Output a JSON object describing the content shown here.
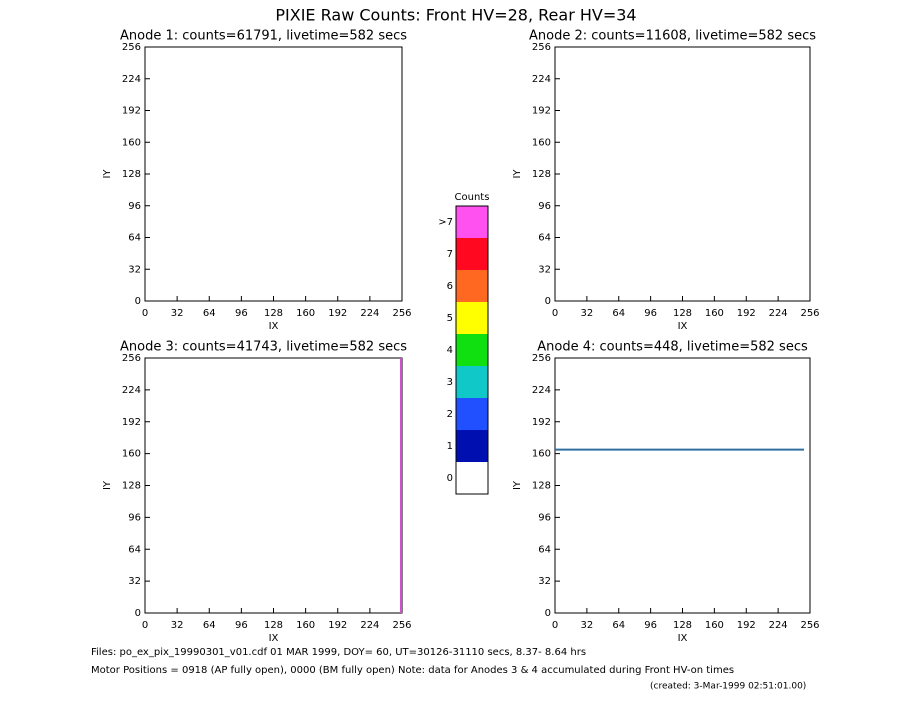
{
  "title": "PIXIE Raw Counts:  Front HV=28, Rear HV=34",
  "chart_data": [
    {
      "type": "image",
      "title": "Anode 1: counts=61791, livetime=582 secs",
      "xlabel": "IX",
      "ylabel": "IY",
      "xlim": [
        0,
        256
      ],
      "ylim": [
        0,
        256
      ],
      "xticks": [
        0,
        32,
        64,
        96,
        128,
        160,
        192,
        224,
        256
      ],
      "yticks": [
        0,
        32,
        64,
        96,
        128,
        160,
        192,
        224,
        256
      ]
    },
    {
      "type": "image",
      "title": "Anode 2: counts=11608, livetime=582 secs",
      "xlabel": "IX",
      "ylabel": "IY",
      "xlim": [
        0,
        256
      ],
      "ylim": [
        0,
        256
      ],
      "xticks": [
        0,
        32,
        64,
        96,
        128,
        160,
        192,
        224,
        256
      ],
      "yticks": [
        0,
        32,
        64,
        96,
        128,
        160,
        192,
        224,
        256
      ]
    },
    {
      "type": "image",
      "title": "Anode 3: counts=41743, livetime=582 secs",
      "xlabel": "IX",
      "ylabel": "IY",
      "xlim": [
        0,
        256
      ],
      "ylim": [
        0,
        256
      ],
      "xticks": [
        0,
        32,
        64,
        96,
        128,
        160,
        192,
        224,
        256
      ],
      "yticks": [
        0,
        32,
        64,
        96,
        128,
        160,
        192,
        224,
        256
      ],
      "segments": [
        {
          "x": [
            255,
            255
          ],
          "y": [
            0,
            256
          ],
          "color": "#d050d0"
        }
      ]
    },
    {
      "type": "image",
      "title": "Anode 4: counts=448, livetime=582 secs",
      "xlabel": "IX",
      "ylabel": "IY",
      "xlim": [
        0,
        256
      ],
      "ylim": [
        0,
        256
      ],
      "xticks": [
        0,
        32,
        64,
        96,
        128,
        160,
        192,
        224,
        256
      ],
      "yticks": [
        0,
        32,
        64,
        96,
        128,
        160,
        192,
        224,
        256
      ],
      "segments": [
        {
          "x": [
            0,
            250
          ],
          "y": [
            164,
            164
          ],
          "color": "#3070a0"
        }
      ]
    },
    {
      "type": "colorbar",
      "title": "Counts",
      "categories": [
        "0",
        "1",
        "2",
        "3",
        "4",
        "5",
        "6",
        "7",
        ">7"
      ],
      "colors": [
        "#ffffff",
        "#0010b0",
        "#2050ff",
        "#10c8c8",
        "#10e010",
        "#ffff00",
        "#ff6820",
        "#ff0820",
        "#ff50f0"
      ]
    }
  ],
  "footer": [
    "Files: po_ex_pix_19990301_v01.cdf   01 MAR 1999, DOY= 60, UT=30126-31110 secs,  8.37- 8.64 hrs",
    "Motor Positions = 0918 (AP fully open), 0000 (BM fully open)    Note: data for Anodes 3 & 4 accumulated during Front HV-on times",
    "(created:  3-Mar-1999 02:51:01.00)"
  ]
}
